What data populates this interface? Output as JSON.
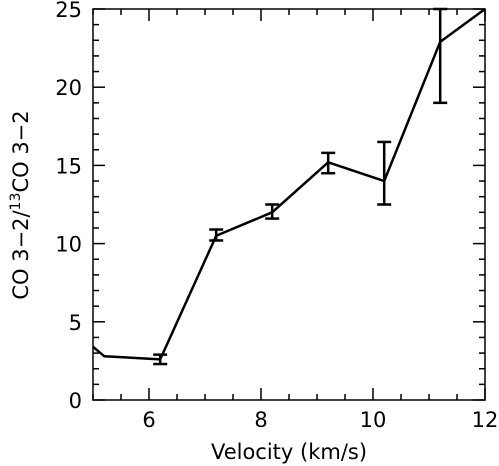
{
  "chart_data": {
    "type": "line",
    "xlabel": "Velocity (km/s)",
    "ylabel": {
      "pre": "CO 3−2/",
      "sup": "13",
      "post": "CO 3−2"
    },
    "xlim": [
      5,
      12
    ],
    "ylim": [
      0,
      25
    ],
    "x_ticks": [
      6,
      8,
      10,
      12
    ],
    "y_ticks": [
      0,
      5,
      10,
      15,
      20,
      25
    ],
    "x_tick_labels": [
      "6",
      "8",
      "10",
      "12"
    ],
    "y_tick_labels": [
      "0",
      "5",
      "10",
      "15",
      "20",
      "25"
    ],
    "series": [
      {
        "x": [
          5.0,
          5.2,
          6.2,
          7.2,
          8.2,
          9.2,
          10.2,
          11.2,
          12.0
        ],
        "y": [
          3.4,
          2.8,
          2.6,
          10.5,
          12.0,
          15.2,
          14.0,
          22.9,
          25.0
        ]
      }
    ],
    "error_bars": [
      {
        "x": 6.2,
        "low": 2.3,
        "high": 2.9
      },
      {
        "x": 7.2,
        "low": 10.2,
        "high": 10.9
      },
      {
        "x": 8.2,
        "low": 11.6,
        "high": 12.5
      },
      {
        "x": 9.2,
        "low": 14.5,
        "high": 15.8
      },
      {
        "x": 10.2,
        "low": 12.5,
        "high": 16.5
      },
      {
        "x": 11.2,
        "low": 19.0,
        "high": 25.0
      }
    ]
  }
}
